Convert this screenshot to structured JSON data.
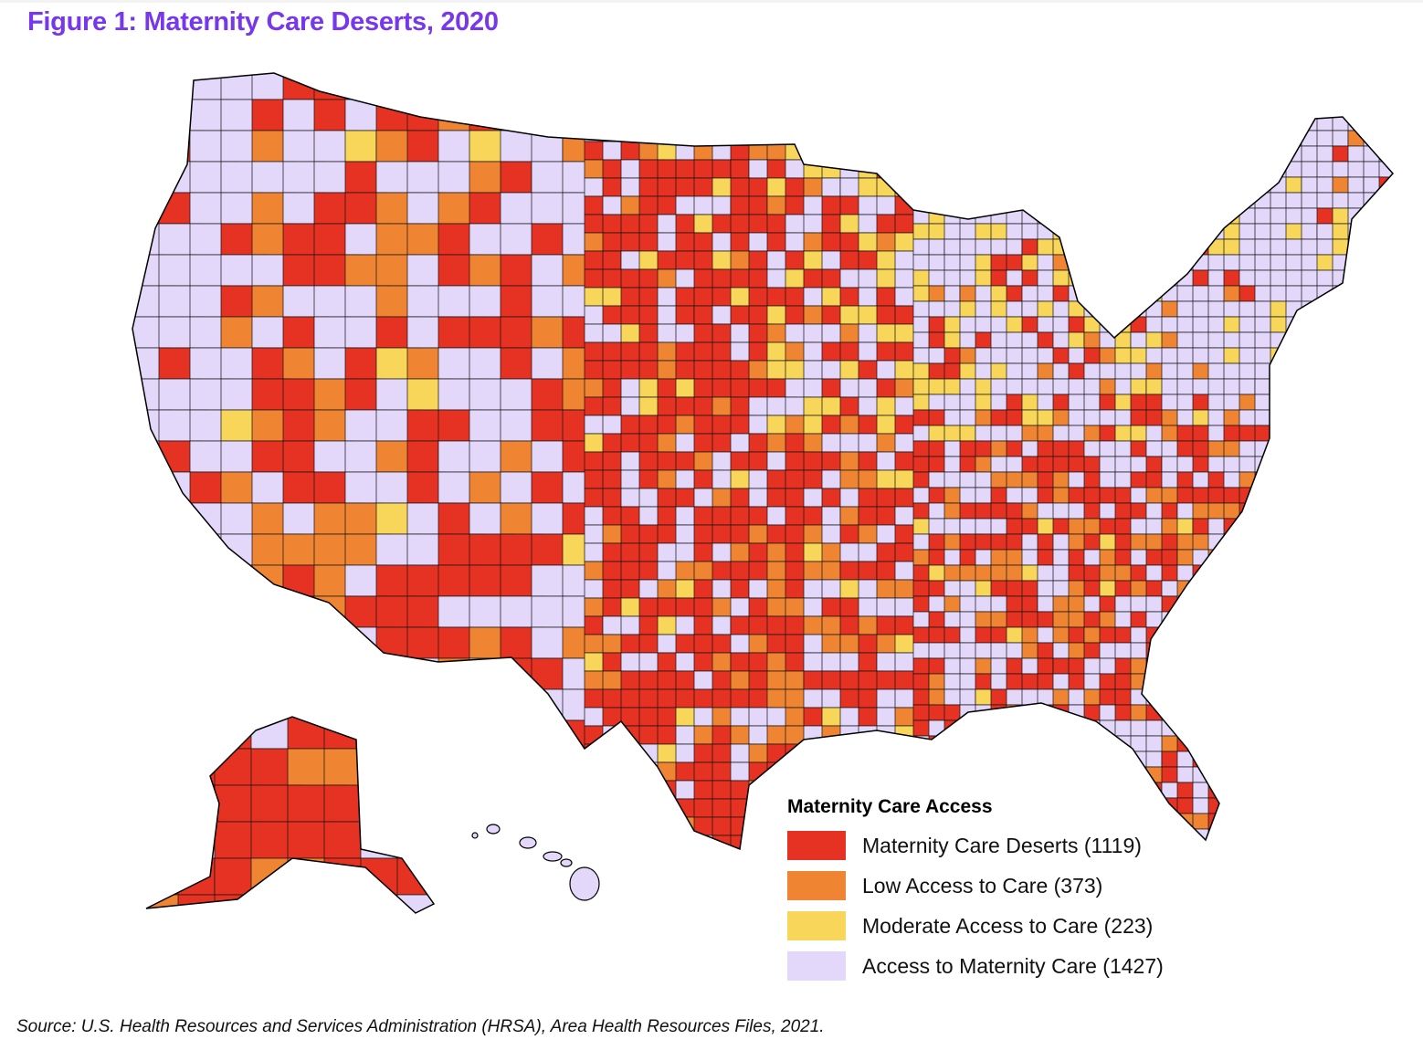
{
  "title": "Figure 1: Maternity Care Deserts, 2020",
  "legend": {
    "title": "Maternity Care Access",
    "items": [
      {
        "label": "Maternity Care Deserts (1119)",
        "color": "#e63222",
        "count": 1119
      },
      {
        "label": "Low Access to Care (373)",
        "color": "#ef8433",
        "count": 373
      },
      {
        "label": "Moderate Access to Care (223)",
        "color": "#f8d65a",
        "count": 223
      },
      {
        "label": "Access to Maternity Care (1427)",
        "color": "#e3d7fa",
        "count": 1427
      }
    ]
  },
  "source": "Source: U.S. Health Resources and Services Administration (HRSA), Area Health Resources Files, 2021."
}
